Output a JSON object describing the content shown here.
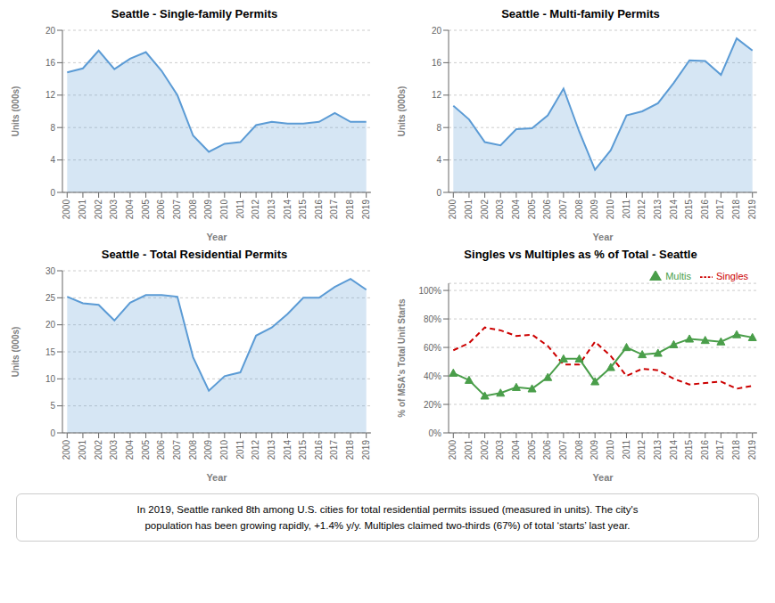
{
  "chart_data": [
    {
      "type": "area",
      "title": "Seattle - Single-family Permits",
      "xlabel": "Year",
      "ylabel": "Units (000s)",
      "x": [
        2000,
        2001,
        2002,
        2003,
        2004,
        2005,
        2006,
        2007,
        2008,
        2009,
        2010,
        2011,
        2012,
        2013,
        2014,
        2015,
        2016,
        2017,
        2018,
        2019
      ],
      "values": [
        14.8,
        15.3,
        17.5,
        15.2,
        16.5,
        17.3,
        15.0,
        12.0,
        7.0,
        5.0,
        6.0,
        6.2,
        8.3,
        8.7,
        8.5,
        8.5,
        8.7,
        9.8,
        8.7,
        8.7
      ],
      "color": "#5b9bd5",
      "xlim": [
        1999.7,
        2019.3
      ],
      "xticks": [
        2000,
        2001,
        2002,
        2003,
        2004,
        2005,
        2006,
        2007,
        2008,
        2009,
        2010,
        2011,
        2012,
        2013,
        2014,
        2015,
        2016,
        2017,
        2018,
        2019
      ],
      "ylim": [
        0,
        20
      ],
      "yticks": [
        0,
        4,
        8,
        12,
        16,
        20
      ],
      "grid": true
    },
    {
      "type": "area",
      "title": "Seattle - Multi-family Permits",
      "xlabel": "Year",
      "ylabel": "Units (000s)",
      "x": [
        2000,
        2001,
        2002,
        2003,
        2004,
        2005,
        2006,
        2007,
        2008,
        2009,
        2010,
        2011,
        2012,
        2013,
        2014,
        2015,
        2016,
        2017,
        2018,
        2019
      ],
      "values": [
        10.7,
        9.0,
        6.2,
        5.8,
        7.8,
        7.9,
        9.5,
        12.8,
        7.5,
        2.8,
        5.2,
        9.5,
        10.0,
        11.0,
        13.5,
        16.3,
        16.2,
        14.5,
        19.0,
        17.5
      ],
      "color": "#5b9bd5",
      "xlim": [
        1999.7,
        2019.3
      ],
      "xticks": [
        2000,
        2001,
        2002,
        2003,
        2004,
        2005,
        2006,
        2007,
        2008,
        2009,
        2010,
        2011,
        2012,
        2013,
        2014,
        2015,
        2016,
        2017,
        2018,
        2019
      ],
      "ylim": [
        0,
        20
      ],
      "yticks": [
        0,
        4,
        8,
        12,
        16,
        20
      ],
      "grid": true
    },
    {
      "type": "area",
      "title": "Seattle - Total Residential Permits",
      "xlabel": "Year",
      "ylabel": "Units (000s)",
      "x": [
        2000,
        2001,
        2002,
        2003,
        2004,
        2005,
        2006,
        2007,
        2008,
        2009,
        2010,
        2011,
        2012,
        2013,
        2014,
        2015,
        2016,
        2017,
        2018,
        2019
      ],
      "values": [
        25.2,
        24.0,
        23.7,
        20.8,
        24.1,
        25.5,
        25.5,
        25.2,
        14.0,
        7.8,
        10.5,
        11.2,
        18.0,
        19.5,
        22.0,
        25.0,
        25.0,
        27.0,
        28.5,
        26.5
      ],
      "color": "#5b9bd5",
      "xlim": [
        1999.7,
        2019.3
      ],
      "xticks": [
        2000,
        2001,
        2002,
        2003,
        2004,
        2005,
        2006,
        2007,
        2008,
        2009,
        2010,
        2011,
        2012,
        2013,
        2014,
        2015,
        2016,
        2017,
        2018,
        2019
      ],
      "ylim": [
        0,
        30
      ],
      "yticks": [
        0,
        5,
        10,
        15,
        20,
        25,
        30
      ],
      "grid": true
    },
    {
      "type": "line",
      "title": "Singles vs Multiples as % of Total - Seattle",
      "xlabel": "Year",
      "ylabel": "% of MSA's Total Unit Starts",
      "x": [
        2000,
        2001,
        2002,
        2003,
        2004,
        2005,
        2006,
        2007,
        2008,
        2009,
        2010,
        2011,
        2012,
        2013,
        2014,
        2015,
        2016,
        2017,
        2018,
        2019
      ],
      "series": [
        {
          "name": "Multis",
          "color": "#4a9e4a",
          "marker": "triangle",
          "line_style": "solid",
          "values": [
            0.42,
            0.37,
            0.26,
            0.28,
            0.32,
            0.31,
            0.39,
            0.52,
            0.52,
            0.36,
            0.46,
            0.6,
            0.55,
            0.56,
            0.62,
            0.66,
            0.65,
            0.64,
            0.69,
            0.67
          ]
        },
        {
          "name": "Singles",
          "color": "#cc0000",
          "marker": "none",
          "line_style": "dashed",
          "values": [
            0.58,
            0.63,
            0.74,
            0.72,
            0.68,
            0.69,
            0.61,
            0.48,
            0.48,
            0.64,
            0.54,
            0.4,
            0.45,
            0.44,
            0.38,
            0.34,
            0.35,
            0.36,
            0.31,
            0.33
          ]
        }
      ],
      "xlim": [
        1999.7,
        2019.3
      ],
      "xticks": [
        2000,
        2001,
        2002,
        2003,
        2004,
        2005,
        2006,
        2007,
        2008,
        2009,
        2010,
        2011,
        2012,
        2013,
        2014,
        2015,
        2016,
        2017,
        2018,
        2019
      ],
      "ylim": [
        0,
        1.05
      ],
      "yticks": [
        {
          "value": 0,
          "label": "0%"
        },
        {
          "value": 0.2,
          "label": "20%"
        },
        {
          "value": 0.4,
          "label": "40%"
        },
        {
          "value": 0.6,
          "label": "60%"
        },
        {
          "value": 0.8,
          "label": "80%"
        },
        {
          "value": 1.0,
          "label": "100%"
        }
      ],
      "grid": true,
      "legend": "upper right"
    }
  ],
  "annotations": [
    "In 2019, Seattle ranked 8th among U.S. cities for total residential permits issued (measured in units). The city's",
    "population has been growing rapidly, +1.4% y/y. Multiples claimed two-thirds (67%) of total ‘starts’ last year."
  ]
}
